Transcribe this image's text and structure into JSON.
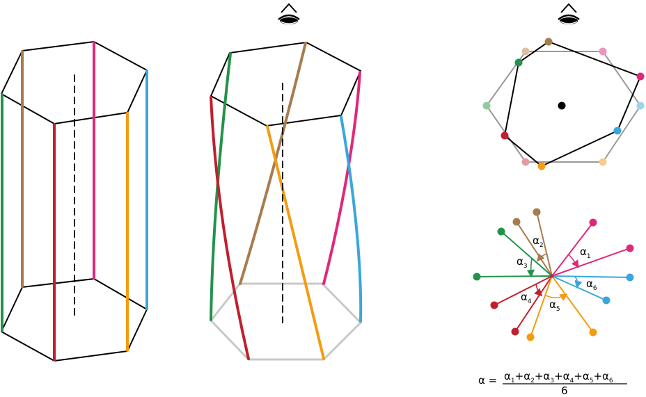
{
  "colors": {
    "red": "#c0202e",
    "brown": "#a87b4f",
    "green": "#22934a",
    "magenta": "#e0287a",
    "orange": "#f39c12",
    "blue": "#3aa6dc",
    "light_green": "#8fcc9f",
    "light_brown": "#dcbfa6",
    "light_magenta": "#ef94bb",
    "light_orange": "#f8cd8a",
    "light_blue": "#9ed2ee",
    "light_red": "#e39aa1",
    "frame": "#000000",
    "gray": "#999999",
    "light_gray": "#c8c8c8"
  },
  "icons": {
    "eye_middle": "eye-icon",
    "eye_right": "eye-icon"
  },
  "angles": {
    "a1": {
      "symbol": "α",
      "sub": "1"
    },
    "a2": {
      "symbol": "α",
      "sub": "2"
    },
    "a3": {
      "symbol": "α",
      "sub": "3"
    },
    "a4": {
      "symbol": "α",
      "sub": "4"
    },
    "a5": {
      "symbol": "α",
      "sub": "5"
    },
    "a6": {
      "symbol": "α",
      "sub": "6"
    }
  },
  "formula": {
    "lhs": "α =",
    "symbol": "α",
    "plus": "+",
    "subs": [
      "1",
      "2",
      "3",
      "4",
      "5",
      "6"
    ],
    "denominator": "6"
  }
}
